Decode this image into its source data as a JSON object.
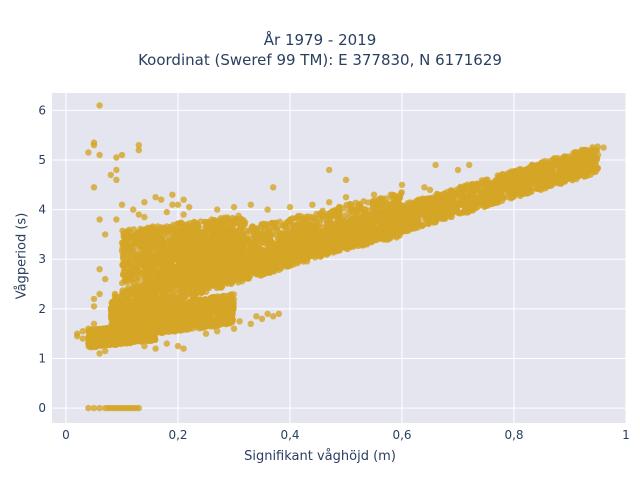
{
  "chart_data": {
    "type": "scatter",
    "title_lines": [
      "År 1979 - 2019",
      "Koordinat (Sweref 99 TM): E 377830, N 6171629"
    ],
    "xlabel": "Signifikant våghöjd (m)",
    "ylabel": "Vågperiod (s)",
    "xlim": [
      -0.025,
      1.0
    ],
    "ylim": [
      -0.3,
      6.35
    ],
    "x_ticks": [
      0,
      0.2,
      0.4,
      0.6,
      0.8,
      1
    ],
    "x_tick_labels": [
      "0",
      "0,2",
      "0,4",
      "0,6",
      "0,8",
      "1"
    ],
    "y_ticks": [
      0,
      1,
      2,
      3,
      4,
      5,
      6
    ],
    "y_tick_labels": [
      "0",
      "1",
      "2",
      "3",
      "4",
      "5",
      "6"
    ],
    "grid": true,
    "marker_color": "#d4a526",
    "plot_background": "#e5e5ef",
    "series": [
      {
        "points": [
          [
            0.06,
            6.1
          ],
          [
            0.04,
            5.15
          ],
          [
            0.05,
            5.3
          ],
          [
            0.05,
            5.35
          ],
          [
            0.06,
            5.1
          ],
          [
            0.09,
            5.05
          ],
          [
            0.1,
            5.1
          ],
          [
            0.13,
            5.2
          ],
          [
            0.13,
            5.3
          ],
          [
            0.05,
            4.45
          ],
          [
            0.08,
            4.7
          ],
          [
            0.09,
            4.8
          ],
          [
            0.09,
            4.6
          ],
          [
            0.06,
            3.8
          ],
          [
            0.07,
            3.5
          ],
          [
            0.06,
            2.8
          ],
          [
            0.07,
            2.6
          ],
          [
            0.06,
            2.3
          ],
          [
            0.05,
            2.2
          ],
          [
            0.05,
            2.05
          ],
          [
            0.02,
            1.5
          ],
          [
            0.02,
            1.45
          ],
          [
            0.03,
            1.55
          ],
          [
            0.03,
            1.4
          ],
          [
            0.04,
            1.6
          ],
          [
            0.04,
            1.3
          ],
          [
            0.05,
            1.7
          ],
          [
            0.05,
            1.25
          ],
          [
            0.06,
            1.1
          ],
          [
            0.07,
            1.15
          ],
          [
            0.16,
            4.25
          ],
          [
            0.19,
            4.3
          ],
          [
            0.2,
            4.1
          ],
          [
            0.21,
            4.2
          ],
          [
            0.18,
            3.95
          ],
          [
            0.12,
            4.0
          ],
          [
            0.13,
            3.9
          ],
          [
            0.14,
            4.15
          ],
          [
            0.1,
            4.1
          ],
          [
            0.09,
            3.8
          ],
          [
            0.19,
            4.1
          ],
          [
            0.17,
            4.2
          ],
          [
            0.21,
            3.9
          ],
          [
            0.22,
            4.05
          ],
          [
            0.14,
            3.85
          ],
          [
            0.21,
            1.2
          ],
          [
            0.2,
            1.25
          ],
          [
            0.18,
            1.3
          ],
          [
            0.16,
            1.2
          ],
          [
            0.14,
            1.25
          ],
          [
            0.25,
            1.5
          ],
          [
            0.27,
            1.55
          ],
          [
            0.3,
            1.6
          ],
          [
            0.33,
            1.7
          ],
          [
            0.35,
            1.8
          ],
          [
            0.37,
            1.85
          ],
          [
            0.38,
            1.9
          ],
          [
            0.36,
            1.9
          ],
          [
            0.34,
            1.85
          ],
          [
            0.31,
            1.75
          ],
          [
            0.37,
            4.45
          ],
          [
            0.47,
            4.8
          ],
          [
            0.5,
            4.6
          ],
          [
            0.6,
            4.5
          ],
          [
            0.64,
            4.45
          ],
          [
            0.65,
            4.4
          ],
          [
            0.66,
            4.9
          ],
          [
            0.72,
            4.9
          ],
          [
            0.7,
            4.8
          ],
          [
            0.75,
            4.6
          ],
          [
            0.78,
            4.7
          ],
          [
            0.83,
            4.85
          ],
          [
            0.85,
            4.95
          ],
          [
            0.87,
            5.0
          ],
          [
            0.89,
            5.05
          ],
          [
            0.91,
            5.1
          ],
          [
            0.92,
            5.15
          ],
          [
            0.94,
            5.2
          ],
          [
            0.96,
            5.25
          ],
          [
            0.95,
            5.1
          ],
          [
            0.93,
            4.95
          ],
          [
            0.9,
            4.85
          ],
          [
            0.88,
            4.75
          ],
          [
            0.86,
            4.65
          ],
          [
            0.84,
            4.55
          ],
          [
            0.82,
            4.45
          ],
          [
            0.8,
            4.35
          ],
          [
            0.78,
            4.25
          ],
          [
            0.76,
            4.2
          ],
          [
            0.74,
            4.15
          ],
          [
            0.27,
            4.0
          ],
          [
            0.3,
            4.05
          ],
          [
            0.33,
            4.1
          ],
          [
            0.36,
            4.0
          ],
          [
            0.4,
            4.05
          ],
          [
            0.44,
            4.1
          ],
          [
            0.47,
            4.15
          ],
          [
            0.5,
            4.25
          ],
          [
            0.55,
            4.3
          ],
          [
            0.58,
            4.3
          ]
        ]
      }
    ],
    "zero_row": {
      "y": 0,
      "x_values": [
        0.04,
        0.05,
        0.06,
        0.07,
        0.075,
        0.08,
        0.085,
        0.09,
        0.095,
        0.1,
        0.105,
        0.11,
        0.115,
        0.12,
        0.125,
        0.13
      ]
    },
    "dense_clusters": [
      {
        "x_range": [
          0.08,
          0.95
        ],
        "y_center_at_x0": 1.75,
        "y_slope": 3.45,
        "y_spread": 0.28,
        "n": 2600
      },
      {
        "x_range": [
          0.04,
          0.16
        ],
        "y_center_at_x0": 1.35,
        "y_slope": 1.2,
        "y_spread": 0.18,
        "n": 700
      },
      {
        "x_range": [
          0.08,
          0.3
        ],
        "y_center_at_x0": 1.55,
        "y_slope": 1.5,
        "y_spread": 0.3,
        "n": 1000
      },
      {
        "x_range": [
          0.1,
          0.32
        ],
        "y_center_at_x0": 2.9,
        "y_slope": 1.4,
        "y_spread": 0.55,
        "n": 1000
      },
      {
        "x_range": [
          0.2,
          0.6
        ],
        "y_center_at_x0": 2.35,
        "y_slope": 2.6,
        "y_spread": 0.45,
        "n": 1100
      }
    ]
  }
}
